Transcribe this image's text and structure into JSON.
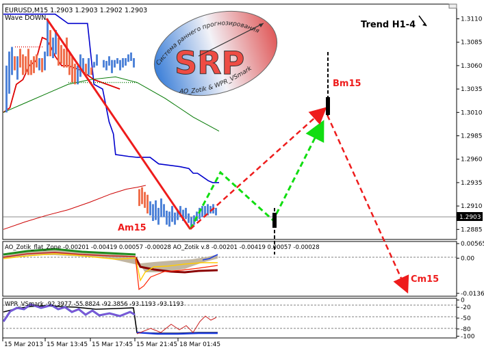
{
  "window": {
    "symbol_line": "EURUSD,M15  1.2903 1.2903 1.2902 1.2903",
    "wave_label": "Wave DOWN",
    "trend_label": "Trend H1-4",
    "current_price": "1.2903"
  },
  "logo": {
    "text": "SRP",
    "arc_top": "Система раннего прогнозирования",
    "arc_bottom": "AO_Zotik & WPR_VSmark"
  },
  "wave_labels": {
    "am": "Am15",
    "bm": "Bm15",
    "cm": "Cm15"
  },
  "indicators": {
    "ao_header": "AO_Zotik_flat_Zone -0.00201 -0.00419 0.00057 -0.00028  AO_Zotik v.8 -0.00201 -0.00419 0.00057 -0.00028",
    "wpr_header": "WPR_VSmark -92.3977 -55.8824 -92.3856 -93.1193 -93.1193"
  },
  "chart_data": [
    {
      "type": "line",
      "panel": "price",
      "title": "EURUSD,M15",
      "y_ticks": [
        "1.3110",
        "1.3085",
        "1.3060",
        "1.3035",
        "1.3010",
        "1.2985",
        "1.2960",
        "1.2935",
        "1.2910",
        "1.2885"
      ],
      "ylim": [
        1.2875,
        1.3125
      ],
      "current_price": 1.2903,
      "x_ticks": [
        "15 Mar 2013",
        "15 Mar 13:45",
        "15 Mar 17:45",
        "15 Mar 21:45",
        "18 Mar 01:45"
      ],
      "series": [
        {
          "color": "#0000cc",
          "x": [
            0,
            24,
            30,
            39,
            42,
            46,
            49,
            51,
            52,
            58,
            62,
            68,
            72,
            82,
            86,
            88,
            90,
            95,
            97,
            100
          ],
          "values": [
            1.3115,
            1.3115,
            1.3105,
            1.3105,
            1.304,
            1.3035,
            1.3,
            1.2987,
            1.2965,
            1.2963,
            1.2962,
            1.2962,
            1.2955,
            1.2952,
            1.295,
            1.2945,
            1.2945,
            1.2937,
            1.2935,
            1.2935
          ]
        },
        {
          "color": "#dd0000",
          "x": [
            0,
            3,
            6,
            9,
            12,
            15,
            18,
            20,
            22,
            24,
            27,
            30,
            36,
            42,
            48,
            54
          ],
          "values": [
            1.301,
            1.3015,
            1.304,
            1.3045,
            1.306,
            1.3065,
            1.309,
            1.3088,
            1.308,
            1.307,
            1.306,
            1.306,
            1.3055,
            1.3045,
            1.304,
            1.3035
          ]
        },
        {
          "color": "#007700",
          "x": [
            0,
            10,
            20,
            30,
            40,
            52,
            62,
            75,
            88,
            100
          ],
          "values": [
            1.301,
            1.302,
            1.303,
            1.304,
            1.3045,
            1.3048,
            1.3042,
            1.3025,
            1.3005,
            1.299
          ]
        },
        {
          "color": "#cc0000",
          "x": [
            0,
            10,
            20,
            30,
            40,
            50,
            57,
            62,
            66
          ],
          "values": [
            1.2885,
            1.2893,
            1.29,
            1.2906,
            1.2914,
            1.2923,
            1.2928,
            1.293,
            1.2932
          ]
        }
      ]
    },
    {
      "type": "area",
      "panel": "AO_Zotik",
      "y_ticks": [
        "0.00565",
        "0.00",
        "-0.01365"
      ],
      "ylim": [
        -0.0145,
        0.0062
      ]
    },
    {
      "type": "line",
      "panel": "WPR_VSmark",
      "y_ticks": [
        "0",
        "-20",
        "-50",
        "-80",
        "-100"
      ],
      "ylim": [
        -103,
        3
      ]
    }
  ],
  "colors": {
    "bull_bar": "#4f83d8",
    "bear_bar": "#ef6f4c",
    "trend_red": "#ee1c1c",
    "forecast_red": "#ee1c1c",
    "forecast_green": "#11dd11",
    "axis_text": "#000000"
  }
}
